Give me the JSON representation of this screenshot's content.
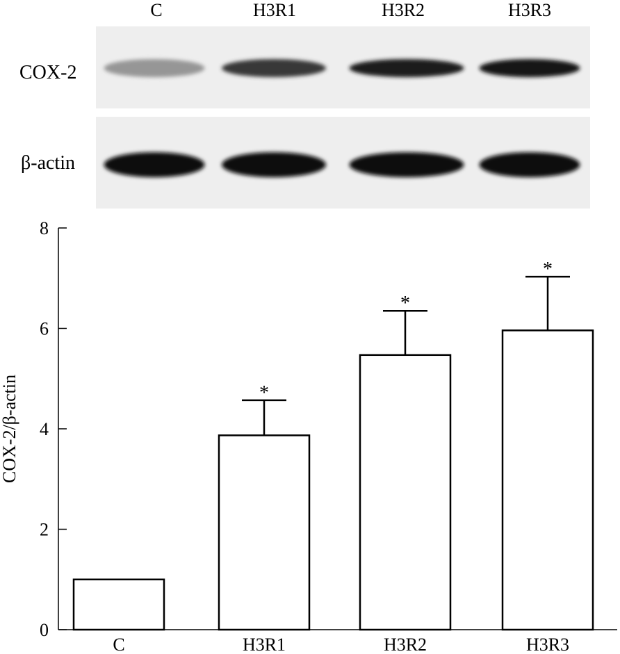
{
  "blot": {
    "lane_labels": [
      "C",
      "H3R1",
      "H3R2",
      "H3R3"
    ],
    "rows": [
      {
        "label": "COX-2",
        "band_intensity": [
          0.35,
          0.78,
          0.92,
          0.96
        ]
      },
      {
        "label": "β-actin",
        "band_intensity": [
          1.0,
          1.0,
          1.0,
          1.0
        ]
      }
    ]
  },
  "chart_data": {
    "type": "bar",
    "categories": [
      "C",
      "H3R1",
      "H3R2",
      "H3R3"
    ],
    "values": [
      1.0,
      3.87,
      5.47,
      5.96
    ],
    "error": [
      0,
      0.7,
      0.88,
      1.07
    ],
    "significance": [
      "",
      "*",
      "*",
      "*"
    ],
    "ylabel": "COX-2/β-actin",
    "xlabel": "",
    "ylim": [
      0,
      8
    ],
    "yticks": [
      0,
      2,
      4,
      6,
      8
    ],
    "grid": false,
    "bar_fill": "#ffffff",
    "bar_stroke": "#000000"
  }
}
